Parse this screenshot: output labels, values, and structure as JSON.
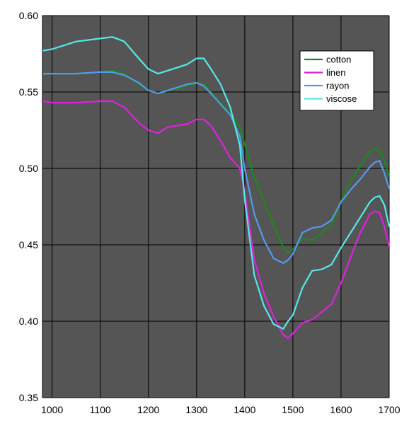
{
  "chart_data": {
    "type": "line",
    "title": "",
    "xlabel": "",
    "ylabel": "",
    "xlim": [
      980,
      1700
    ],
    "ylim": [
      0.35,
      0.6
    ],
    "x_ticks": [
      1000,
      1100,
      1200,
      1300,
      1400,
      1500,
      1600,
      1700
    ],
    "x_tick_labels": [
      "1000",
      "1100",
      "1200",
      "1300",
      "1400",
      "1500",
      "1600",
      "1700"
    ],
    "y_ticks": [
      0.35,
      0.4,
      0.45,
      0.5,
      0.55,
      0.6
    ],
    "y_tick_labels": [
      "0.35",
      "0.40",
      "0.45",
      "0.50",
      "0.55",
      "0.60"
    ],
    "grid": true,
    "plot_background": "#555555",
    "grid_color": "#000000",
    "legend_position": "top-right",
    "series": [
      {
        "name": "cotton",
        "color": "#1a8a1a",
        "x": [
          980,
          1000,
          1050,
          1100,
          1125,
          1150,
          1180,
          1200,
          1220,
          1240,
          1260,
          1280,
          1300,
          1315,
          1330,
          1350,
          1370,
          1390,
          1400,
          1420,
          1440,
          1460,
          1480,
          1490,
          1500,
          1520,
          1540,
          1560,
          1580,
          1600,
          1620,
          1640,
          1660,
          1670,
          1680,
          1690,
          1700
        ],
        "y": [
          0.562,
          0.562,
          0.562,
          0.563,
          0.564,
          0.562,
          0.555,
          0.551,
          0.549,
          0.551,
          0.552,
          0.554,
          0.556,
          0.555,
          0.55,
          0.543,
          0.536,
          0.527,
          0.516,
          0.494,
          0.478,
          0.463,
          0.448,
          0.445,
          0.447,
          0.454,
          0.453,
          0.458,
          0.463,
          0.478,
          0.492,
          0.502,
          0.511,
          0.513,
          0.512,
          0.505,
          0.495
        ]
      },
      {
        "name": "linen",
        "color": "#e020e0",
        "x": [
          980,
          1000,
          1050,
          1100,
          1125,
          1150,
          1180,
          1200,
          1220,
          1240,
          1260,
          1280,
          1300,
          1315,
          1330,
          1350,
          1370,
          1390,
          1400,
          1420,
          1440,
          1460,
          1480,
          1490,
          1500,
          1520,
          1540,
          1560,
          1580,
          1600,
          1620,
          1640,
          1660,
          1670,
          1680,
          1690,
          1700
        ],
        "y": [
          0.544,
          0.543,
          0.543,
          0.544,
          0.544,
          0.54,
          0.53,
          0.525,
          0.523,
          0.527,
          0.528,
          0.529,
          0.532,
          0.532,
          0.528,
          0.518,
          0.507,
          0.5,
          0.485,
          0.44,
          0.418,
          0.403,
          0.391,
          0.389,
          0.392,
          0.399,
          0.401,
          0.406,
          0.411,
          0.425,
          0.442,
          0.458,
          0.47,
          0.472,
          0.471,
          0.462,
          0.449
        ]
      },
      {
        "name": "rayon",
        "color": "#5599ee",
        "x": [
          980,
          1000,
          1050,
          1100,
          1125,
          1150,
          1180,
          1200,
          1220,
          1240,
          1260,
          1280,
          1300,
          1315,
          1330,
          1350,
          1370,
          1390,
          1400,
          1420,
          1440,
          1460,
          1480,
          1490,
          1500,
          1520,
          1540,
          1560,
          1580,
          1600,
          1620,
          1640,
          1660,
          1670,
          1680,
          1690,
          1700
        ],
        "y": [
          0.562,
          0.562,
          0.562,
          0.563,
          0.563,
          0.561,
          0.556,
          0.551,
          0.549,
          0.551,
          0.553,
          0.555,
          0.556,
          0.554,
          0.549,
          0.542,
          0.535,
          0.521,
          0.5,
          0.47,
          0.453,
          0.441,
          0.438,
          0.44,
          0.444,
          0.458,
          0.461,
          0.462,
          0.466,
          0.478,
          0.486,
          0.493,
          0.501,
          0.504,
          0.505,
          0.497,
          0.487
        ]
      },
      {
        "name": "viscose",
        "color": "#55e8e8",
        "x": [
          980,
          1000,
          1050,
          1100,
          1125,
          1150,
          1180,
          1200,
          1220,
          1240,
          1260,
          1280,
          1300,
          1315,
          1330,
          1350,
          1370,
          1390,
          1400,
          1420,
          1440,
          1460,
          1480,
          1490,
          1500,
          1520,
          1540,
          1560,
          1580,
          1600,
          1620,
          1640,
          1660,
          1670,
          1680,
          1690,
          1700
        ],
        "y": [
          0.577,
          0.578,
          0.583,
          0.585,
          0.586,
          0.583,
          0.572,
          0.565,
          0.562,
          0.564,
          0.566,
          0.568,
          0.572,
          0.572,
          0.565,
          0.555,
          0.54,
          0.515,
          0.48,
          0.43,
          0.41,
          0.398,
          0.395,
          0.4,
          0.404,
          0.422,
          0.433,
          0.434,
          0.437,
          0.448,
          0.458,
          0.468,
          0.478,
          0.481,
          0.482,
          0.476,
          0.462
        ]
      }
    ]
  }
}
